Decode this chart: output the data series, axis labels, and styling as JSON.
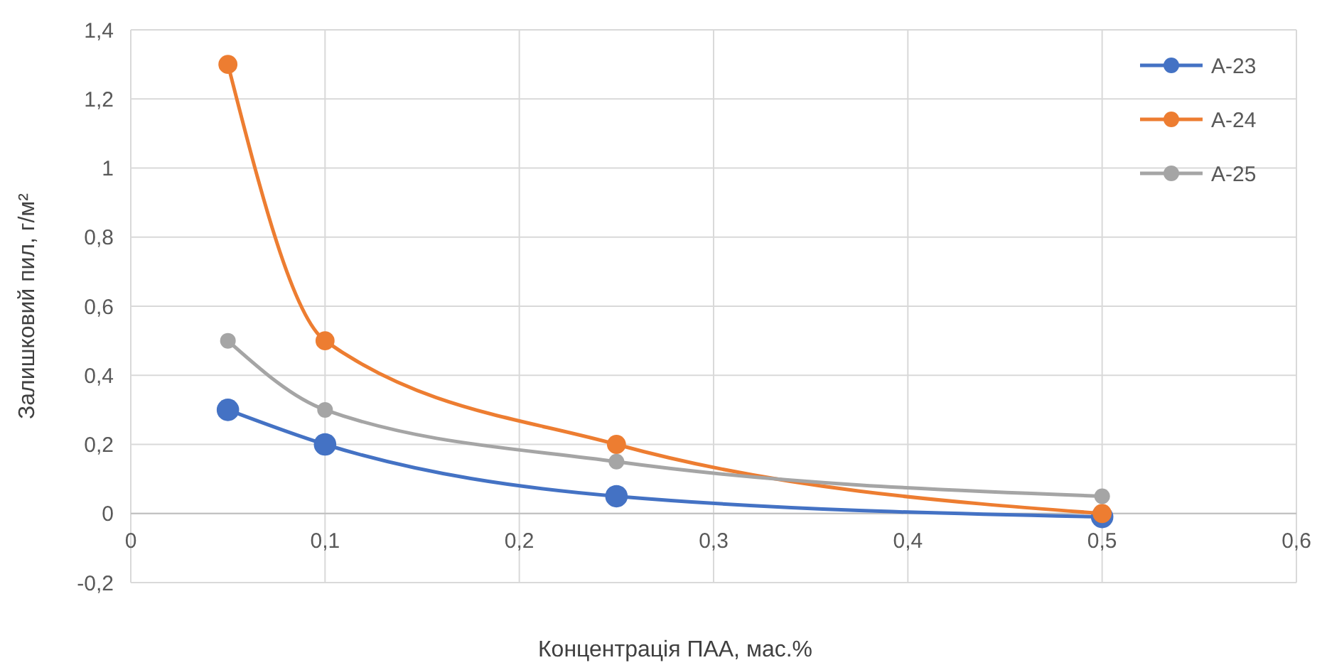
{
  "chart_data": {
    "type": "line",
    "xlabel": "Концентрація ПАА, мас.%",
    "ylabel": "Залишковий пил, г/м²",
    "x": [
      0.05,
      0.1,
      0.25,
      0.5
    ],
    "series": [
      {
        "name": "A-23",
        "color": "#4472c4",
        "values": [
          0.3,
          0.2,
          0.05,
          -0.01
        ]
      },
      {
        "name": "A-24",
        "color": "#ed7d31",
        "values": [
          1.3,
          0.5,
          0.2,
          0
        ]
      },
      {
        "name": "A-25",
        "color": "#a5a5a5",
        "values": [
          0.5,
          0.3,
          0.15,
          0.05
        ]
      }
    ],
    "xlim": [
      0,
      0.6
    ],
    "xticks": [
      {
        "value": 0,
        "label": "0"
      },
      {
        "value": 0.1,
        "label": "0,1"
      },
      {
        "value": 0.2,
        "label": "0,2"
      },
      {
        "value": 0.3,
        "label": "0,3"
      },
      {
        "value": 0.4,
        "label": "0,4"
      },
      {
        "value": 0.5,
        "label": "0,5"
      },
      {
        "value": 0.6,
        "label": "0,6"
      }
    ],
    "ylim": [
      -0.2,
      1.4
    ],
    "yticks": [
      {
        "value": -0.2,
        "label": "-0,2"
      },
      {
        "value": 0,
        "label": "0"
      },
      {
        "value": 0.2,
        "label": "0,2"
      },
      {
        "value": 0.4,
        "label": "0,4"
      },
      {
        "value": 0.6,
        "label": "0,6"
      },
      {
        "value": 0.8,
        "label": "0,8"
      },
      {
        "value": 1,
        "label": "1"
      },
      {
        "value": 1.2,
        "label": "1,2"
      },
      {
        "value": 1.4,
        "label": "1,4"
      }
    ],
    "grid": true,
    "legend": "top right",
    "marker": "circle",
    "line_style": "solid"
  }
}
